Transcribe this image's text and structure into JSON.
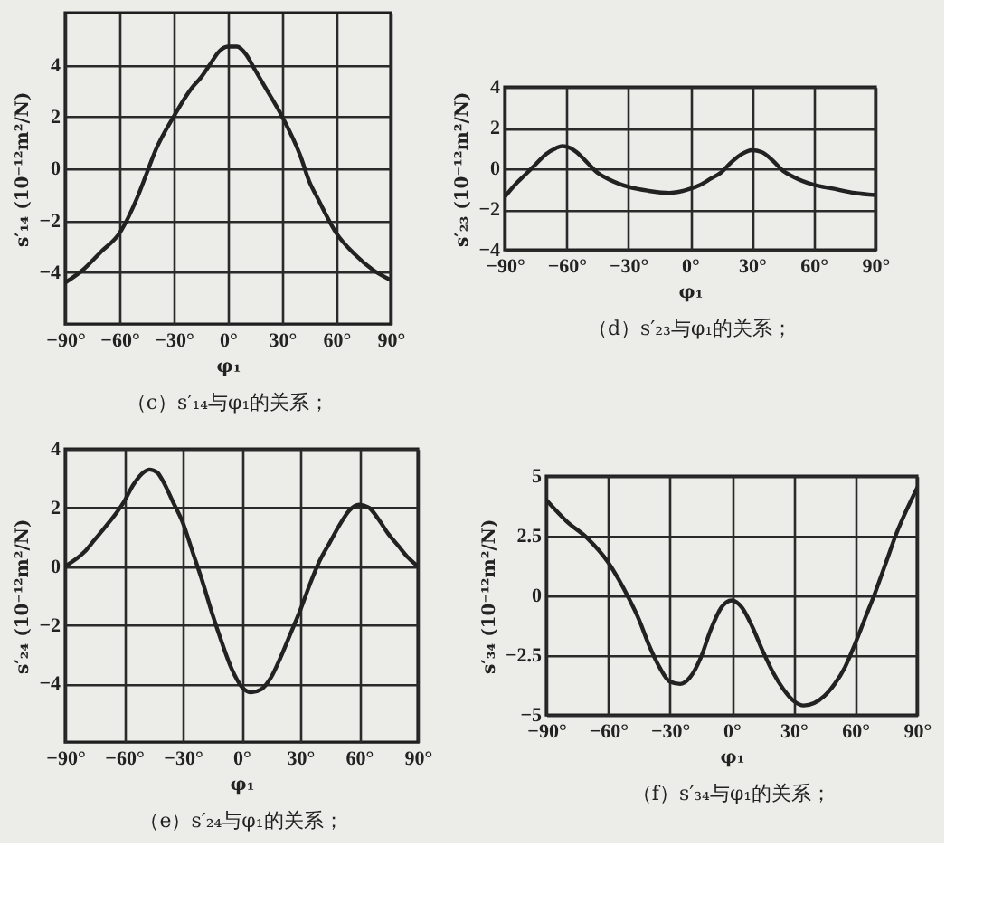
{
  "chart_data": [
    {
      "type": "line",
      "title": "（c）s′₁₄与φ₁的关系；",
      "xlabel": "φ₁",
      "ylabel": "s′₁₄ (10⁻¹²m²/N)",
      "xlim": [
        -90,
        90
      ],
      "ylim": [
        -6,
        6
      ],
      "xticks": [
        {
          "value": -90,
          "label": "−90°"
        },
        {
          "value": -60,
          "label": "−60°"
        },
        {
          "value": -30,
          "label": "−30°"
        },
        {
          "value": 0,
          "label": "0°"
        },
        {
          "value": 30,
          "label": "30°"
        },
        {
          "value": 60,
          "label": "60°"
        },
        {
          "value": 90,
          "label": "90°"
        }
      ],
      "yticks": [
        -4,
        -2,
        0,
        2,
        4
      ],
      "grid": true,
      "line_style": "solid",
      "x": [
        -90,
        -80,
        -70,
        -60,
        -50,
        -45,
        -40,
        -30,
        -20,
        -15,
        -10,
        -5,
        0,
        5,
        10,
        15,
        20,
        30,
        40,
        45,
        50,
        60,
        70,
        80,
        90
      ],
      "series": [
        {
          "color": "#222222",
          "values": [
            -4.4,
            -3.9,
            -3.2,
            -2.5,
            -1.1,
            -0.2,
            0.7,
            2.0,
            3.1,
            3.5,
            4.0,
            4.5,
            4.7,
            4.7,
            4.4,
            3.8,
            3.2,
            2.0,
            0.5,
            -0.5,
            -1.2,
            -2.5,
            -3.3,
            -3.9,
            -4.3
          ]
        }
      ]
    },
    {
      "type": "line",
      "title": "（d）s′₂₃与φ₁的关系；",
      "xlabel": "φ₁",
      "ylabel": "s′₂₃ (10⁻¹²m²/N)",
      "xlim": [
        -90,
        90
      ],
      "ylim": [
        -4,
        4
      ],
      "xticks": [
        {
          "value": -90,
          "label": "−90°"
        },
        {
          "value": -60,
          "label": "−60°"
        },
        {
          "value": -30,
          "label": "−30°"
        },
        {
          "value": 0,
          "label": "0°"
        },
        {
          "value": 30,
          "label": "30°"
        },
        {
          "value": 60,
          "label": "60°"
        },
        {
          "value": 90,
          "label": "90°"
        }
      ],
      "yticks": [
        -4,
        -2,
        0,
        2,
        4
      ],
      "grid": true,
      "line_style": "solid",
      "x": [
        -90,
        -85,
        -80,
        -75,
        -70,
        -65,
        -62,
        -58,
        -55,
        -50,
        -45,
        -40,
        -30,
        -20,
        -10,
        0,
        5,
        10,
        15,
        20,
        25,
        30,
        35,
        40,
        45,
        50,
        60,
        70,
        80,
        90
      ],
      "series": [
        {
          "color": "#222222",
          "values": [
            -1.4,
            -0.8,
            -0.3,
            0.2,
            0.7,
            1.0,
            1.1,
            1.0,
            0.8,
            0.3,
            -0.2,
            -0.5,
            -0.9,
            -1.1,
            -1.2,
            -1.0,
            -0.8,
            -0.5,
            -0.2,
            0.3,
            0.7,
            0.9,
            0.8,
            0.4,
            -0.1,
            -0.4,
            -0.8,
            -1.0,
            -1.2,
            -1.3
          ]
        }
      ]
    },
    {
      "type": "line",
      "title": "（e）s′₂₄与φ₁的关系；",
      "xlabel": "φ₁",
      "ylabel": "s′₂₄ (10⁻¹²m²/N)",
      "xlim": [
        -90,
        90
      ],
      "ylim": [
        -6,
        4
      ],
      "xticks": [
        {
          "value": -90,
          "label": "−90°"
        },
        {
          "value": -60,
          "label": "−60°"
        },
        {
          "value": -30,
          "label": "−30°"
        },
        {
          "value": 0,
          "label": "0°"
        },
        {
          "value": 30,
          "label": "30°"
        },
        {
          "value": 60,
          "label": "60°"
        },
        {
          "value": 90,
          "label": "90°"
        }
      ],
      "yticks": [
        -4,
        -2,
        0,
        2,
        4
      ],
      "grid": true,
      "line_style": "solid",
      "x": [
        -90,
        -80,
        -75,
        -70,
        -60,
        -55,
        -50,
        -47,
        -43,
        -40,
        -35,
        -30,
        -25,
        -20,
        -15,
        -10,
        -5,
        0,
        5,
        10,
        15,
        20,
        25,
        30,
        35,
        40,
        45,
        50,
        55,
        60,
        65,
        70,
        75,
        80,
        85,
        90
      ],
      "series": [
        {
          "color": "#222222",
          "values": [
            0,
            0.5,
            0.9,
            1.3,
            2.2,
            2.8,
            3.2,
            3.3,
            3.2,
            2.9,
            2.2,
            1.5,
            0.5,
            -0.5,
            -1.6,
            -2.6,
            -3.5,
            -4.1,
            -4.3,
            -4.2,
            -3.8,
            -3.1,
            -2.3,
            -1.5,
            -0.6,
            0.2,
            0.8,
            1.4,
            1.9,
            2.1,
            2.0,
            1.6,
            1.1,
            0.7,
            0.3,
            0
          ]
        }
      ]
    },
    {
      "type": "line",
      "title": "（f）s′₃₄与φ₁的关系；",
      "xlabel": "φ₁",
      "ylabel": "s′₃₄ (10⁻¹²m²/N)",
      "xlim": [
        -90,
        90
      ],
      "ylim": [
        -5,
        5
      ],
      "xticks": [
        {
          "value": -90,
          "label": "−90°"
        },
        {
          "value": -60,
          "label": "−60°"
        },
        {
          "value": -30,
          "label": "−30°"
        },
        {
          "value": 0,
          "label": "0°"
        },
        {
          "value": 30,
          "label": "30°"
        },
        {
          "value": 60,
          "label": "60°"
        },
        {
          "value": 90,
          "label": "90°"
        }
      ],
      "yticks": [
        -5,
        -2.5,
        0,
        2.5,
        5
      ],
      "grid": true,
      "line_style": "solid",
      "x": [
        -90,
        -80,
        -70,
        -60,
        -55,
        -50,
        -45,
        -40,
        -35,
        -30,
        -25,
        -20,
        -15,
        -10,
        -5,
        0,
        5,
        10,
        15,
        20,
        25,
        30,
        35,
        40,
        45,
        50,
        55,
        60,
        65,
        70,
        75,
        80,
        85,
        90
      ],
      "series": [
        {
          "color": "#222222",
          "values": [
            4.0,
            3.1,
            2.4,
            1.4,
            0.7,
            -0.1,
            -1.0,
            -2.1,
            -3.0,
            -3.6,
            -3.7,
            -3.4,
            -2.6,
            -1.4,
            -0.5,
            -0.2,
            -0.5,
            -1.3,
            -2.3,
            -3.2,
            -3.9,
            -4.4,
            -4.6,
            -4.5,
            -4.2,
            -3.7,
            -3.0,
            -2.0,
            -0.9,
            0.2,
            1.4,
            2.6,
            3.6,
            4.5
          ]
        }
      ]
    }
  ]
}
